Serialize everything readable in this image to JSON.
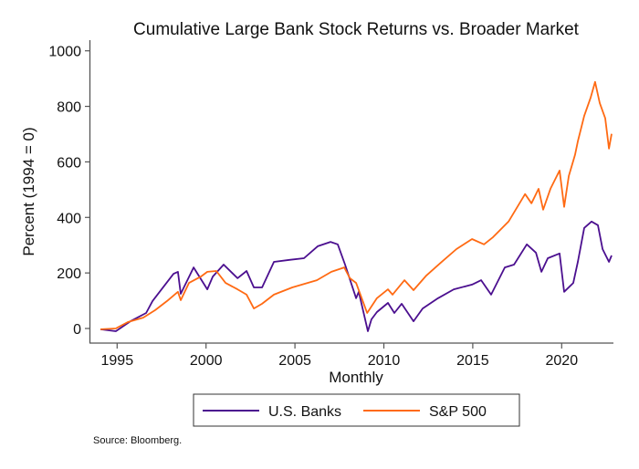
{
  "chart_data": {
    "type": "line",
    "title": "Cumulative Large Bank Stock Returns vs. Broader Market",
    "xlabel": "Monthly",
    "ylabel": "Percent (1994 = 0)",
    "xlim": [
      1993.5,
      2023.2
    ],
    "ylim": [
      -50,
      1020
    ],
    "xticks": [
      1995,
      2000,
      2005,
      2010,
      2015,
      2020
    ],
    "yticks": [
      0,
      200,
      400,
      600,
      800,
      1000
    ],
    "grid": false,
    "legend": "bottom",
    "source": "Source: Bloomberg.",
    "series": [
      {
        "name": "U.S. Banks",
        "color": "#4b0f8f",
        "x": [
          1994.06,
          1994.93,
          1995.75,
          1996.63,
          1996.99,
          1997.5,
          1998.17,
          1998.42,
          1998.58,
          1999.3,
          2000.07,
          2000.38,
          2000.99,
          2001.77,
          2002.28,
          2002.69,
          2003.15,
          2003.82,
          2004.69,
          2005.51,
          2006.28,
          2007.0,
          2007.41,
          2007.82,
          2008.44,
          2008.59,
          2009.1,
          2009.3,
          2009.61,
          2010.23,
          2010.59,
          2011.0,
          2011.67,
          2012.18,
          2013.05,
          2013.93,
          2014.96,
          2015.47,
          2016.03,
          2016.8,
          2017.32,
          2018.04,
          2018.55,
          2018.86,
          2019.22,
          2019.88,
          2020.14,
          2020.65,
          2020.91,
          2021.27,
          2021.68,
          2022.04,
          2022.3,
          2022.66,
          2022.81
        ],
        "y": [
          -3,
          -10,
          26,
          56,
          99,
          141,
          197,
          204,
          125,
          220,
          141,
          187,
          230,
          181,
          207,
          148,
          148,
          240,
          247,
          253,
          296,
          312,
          303,
          230,
          109,
          132,
          -10,
          33,
          59,
          92,
          56,
          89,
          26,
          72,
          109,
          141,
          158,
          174,
          122,
          220,
          230,
          303,
          273,
          204,
          253,
          270,
          132,
          164,
          240,
          362,
          385,
          372,
          286,
          240,
          263
        ]
      },
      {
        "name": "S&P 500",
        "color": "#ff6a13",
        "x": [
          1994.06,
          1994.93,
          1995.6,
          1996.47,
          1997.14,
          1997.81,
          1998.42,
          1998.58,
          1999.04,
          1999.71,
          2000.07,
          2000.58,
          2001.1,
          2001.77,
          2002.28,
          2002.69,
          2003.15,
          2003.82,
          2004.85,
          2006.23,
          2007.05,
          2007.77,
          2008.09,
          2008.44,
          2009.06,
          2009.61,
          2010.23,
          2010.49,
          2011.16,
          2011.67,
          2012.39,
          2013.2,
          2014.08,
          2014.96,
          2015.63,
          2016.14,
          2017.01,
          2017.94,
          2018.3,
          2018.7,
          2018.96,
          2019.37,
          2019.88,
          2020.14,
          2020.4,
          2020.75,
          2020.91,
          2021.27,
          2021.63,
          2021.88,
          2022.14,
          2022.45,
          2022.66,
          2022.81
        ],
        "y": [
          -3,
          0,
          23,
          39,
          66,
          99,
          132,
          102,
          164,
          187,
          204,
          207,
          164,
          141,
          122,
          72,
          89,
          122,
          148,
          174,
          204,
          220,
          181,
          164,
          56,
          109,
          141,
          122,
          174,
          138,
          191,
          237,
          286,
          322,
          303,
          329,
          385,
          484,
          451,
          503,
          428,
          503,
          569,
          438,
          549,
          625,
          674,
          766,
          832,
          888,
          812,
          757,
          648,
          701
        ]
      }
    ]
  }
}
